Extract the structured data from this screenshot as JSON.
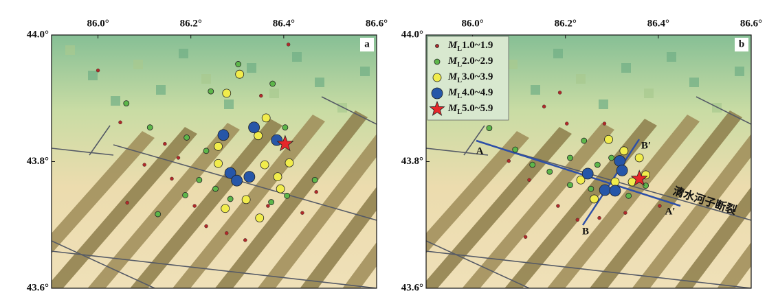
{
  "chart_data": [
    {
      "type": "scatter",
      "panel_label": "a",
      "xlim": [
        85.9,
        86.6
      ],
      "ylim": [
        43.6,
        44.0
      ],
      "xticks": [
        {
          "value": 86.0,
          "label": "86.0°"
        },
        {
          "value": 86.2,
          "label": "86.2°"
        },
        {
          "value": 86.4,
          "label": "86.4°"
        },
        {
          "value": 86.6,
          "label": "86.6°"
        }
      ],
      "yticks": [
        {
          "value": 44.0,
          "label": "44.0°"
        },
        {
          "value": 43.8,
          "label": "43.8°"
        },
        {
          "value": 43.6,
          "label": "43.6°"
        }
      ],
      "series": [
        {
          "color": "#b02a2a",
          "marker": "circle",
          "x": [
            86.0,
            86.41,
            86.048,
            86.144,
            86.1,
            86.159,
            86.173,
            86.208,
            86.233,
            86.277,
            86.317,
            86.366,
            86.063,
            86.44,
            86.47,
            86.351
          ],
          "y": [
            43.944,
            43.985,
            43.862,
            43.828,
            43.795,
            43.773,
            43.806,
            43.73,
            43.698,
            43.687,
            43.676,
            43.73,
            43.735,
            43.719,
            43.752,
            43.904
          ]
        },
        {
          "color": "#5db64a",
          "marker": "circle",
          "x": [
            86.061,
            86.112,
            86.243,
            86.302,
            86.376,
            86.403,
            86.191,
            86.233,
            86.218,
            86.253,
            86.285,
            86.373,
            86.467,
            86.129,
            86.188,
            86.407
          ],
          "y": [
            43.892,
            43.854,
            43.911,
            43.954,
            43.923,
            43.854,
            43.838,
            43.817,
            43.771,
            43.757,
            43.741,
            43.736,
            43.771,
            43.717,
            43.747,
            43.746
          ]
        },
        {
          "color": "#f1ec4c",
          "marker": "circle",
          "x": [
            86.277,
            86.305,
            86.362,
            86.345,
            86.259,
            86.259,
            86.359,
            86.412,
            86.387,
            86.393,
            86.319,
            86.274,
            86.348
          ],
          "y": [
            43.908,
            43.938,
            43.869,
            43.841,
            43.824,
            43.797,
            43.795,
            43.798,
            43.776,
            43.757,
            43.74,
            43.726,
            43.711
          ]
        },
        {
          "color": "#2656a8",
          "marker": "circle",
          "x": [
            86.27,
            86.336,
            86.385,
            86.285,
            86.299,
            86.326
          ],
          "y": [
            43.842,
            43.854,
            43.834,
            43.782,
            43.77,
            43.776
          ]
        },
        {
          "color": "#e6262a",
          "marker": "star",
          "x": [
            86.403
          ],
          "y": [
            43.828
          ]
        }
      ]
    },
    {
      "type": "scatter",
      "panel_label": "b",
      "xlim": [
        85.9,
        86.6
      ],
      "ylim": [
        43.6,
        44.0
      ],
      "xticks": [
        {
          "value": 86.0,
          "label": "86.0°"
        },
        {
          "value": 86.2,
          "label": "86.2°"
        },
        {
          "value": 86.4,
          "label": "86.4°"
        },
        {
          "value": 86.6,
          "label": "86.6°"
        }
      ],
      "yticks": [
        {
          "value": 44.0,
          "label": "44.0°"
        },
        {
          "value": 43.8,
          "label": "43.8°"
        },
        {
          "value": 43.6,
          "label": "43.6°"
        }
      ],
      "legend": "upper left",
      "magnitude_symbol": "M",
      "magnitude_subscript": "L",
      "series": [
        {
          "name": "1.0~1.9",
          "color": "#b02a2a",
          "marker": "circle",
          "x": [
            86.188,
            86.154,
            86.078,
            86.122,
            86.184,
            86.226,
            86.273,
            86.329,
            86.403,
            86.114,
            86.203,
            86.284
          ],
          "y": [
            43.909,
            43.887,
            43.801,
            43.771,
            43.73,
            43.708,
            43.711,
            43.719,
            43.73,
            43.681,
            43.86,
            43.86
          ]
        },
        {
          "name": "2.0~2.9",
          "color": "#5db64a",
          "marker": "circle",
          "x": [
            86.036,
            86.092,
            86.129,
            86.166,
            86.21,
            86.24,
            86.269,
            86.299,
            86.336,
            86.373,
            86.255,
            86.21
          ],
          "y": [
            43.853,
            43.819,
            43.795,
            43.784,
            43.806,
            43.833,
            43.795,
            43.806,
            43.746,
            43.762,
            43.757,
            43.763
          ]
        },
        {
          "name": "3.0~3.9",
          "color": "#f1ec4c",
          "marker": "circle",
          "x": [
            86.293,
            86.233,
            86.326,
            86.359,
            86.373,
            86.344,
            86.262,
            86.307
          ],
          "y": [
            43.835,
            43.771,
            43.817,
            43.806,
            43.779,
            43.768,
            43.741,
            43.768
          ]
        },
        {
          "name": "4.0~4.9",
          "color": "#2656a8",
          "marker": "circle",
          "x": [
            86.248,
            86.285,
            86.307,
            86.317,
            86.322
          ],
          "y": [
            43.781,
            43.755,
            43.754,
            43.801,
            43.786
          ]
        },
        {
          "name": "5.0~5.9",
          "color": "#e6262a",
          "marker": "star",
          "x": [
            86.359
          ],
          "y": [
            43.773
          ]
        }
      ],
      "profile_labels": [
        "A",
        "A′",
        "B",
        "B′"
      ],
      "fault_label": "清水河子断裂"
    }
  ]
}
